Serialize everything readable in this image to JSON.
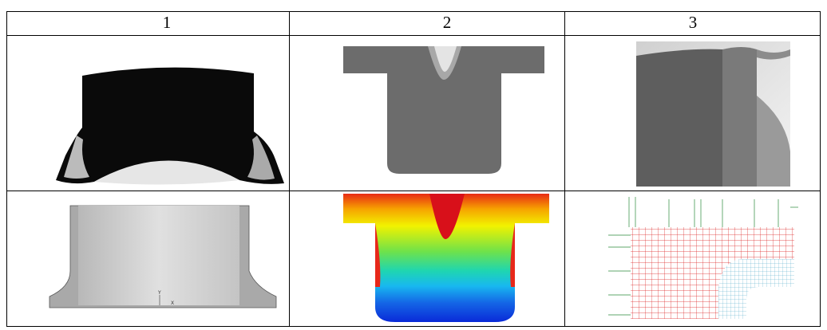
{
  "table": {
    "header": [
      "1",
      "2",
      "3"
    ],
    "annotations": {
      "axis_y": "Y",
      "axis_x": "X"
    }
  }
}
